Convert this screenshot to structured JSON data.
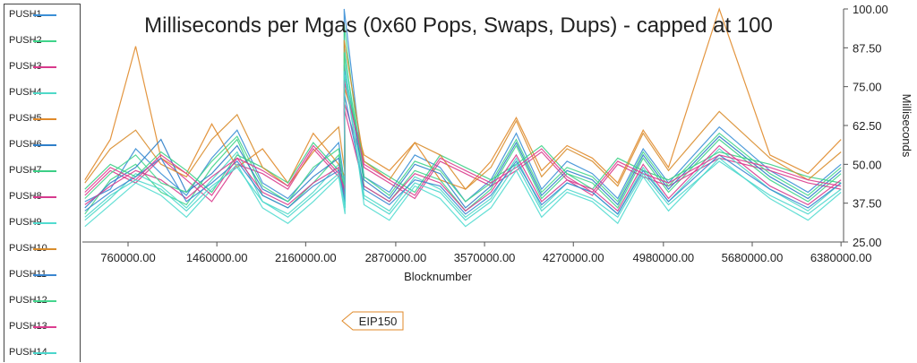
{
  "chart_data": {
    "type": "line",
    "title": "Milliseconds per Mgas (0x60 Pops, Swaps, Dups) - capped at 100",
    "xlabel": "Blocknumber",
    "ylabel": "Milliseconds",
    "xlim": [
      400000,
      6400000
    ],
    "ylim": [
      25,
      100
    ],
    "x_ticks": [
      "760000.00",
      "1460000.00",
      "2160000.00",
      "2870000.00",
      "3570000.00",
      "4270000.00",
      "4980000.00",
      "5680000.00",
      "6380000.00"
    ],
    "x_tick_values": [
      760000,
      1460000,
      2160000,
      2870000,
      3570000,
      4270000,
      4980000,
      5680000,
      6380000
    ],
    "y_ticks": [
      "100.00",
      "87.50",
      "75.00",
      "62.50",
      "50.00",
      "37.50",
      "25.00"
    ],
    "y_tick_values": [
      100,
      87.5,
      75,
      62.5,
      50,
      37.5,
      25
    ],
    "legend_position": "left",
    "grid": false,
    "annotation": {
      "label": "EIP150",
      "x": 2463000
    },
    "series": [
      {
        "name": "PUSH1",
        "color": "#3b8fd6",
        "values": [
          38,
          42,
          55,
          47,
          40,
          52,
          61,
          44,
          39,
          48,
          57,
          43,
          100,
          46,
          41,
          53,
          49,
          38,
          45,
          60,
          42,
          51,
          47,
          39,
          55,
          44,
          62,
          48,
          41,
          50
        ]
      },
      {
        "name": "PUSH2",
        "color": "#3fd48a",
        "values": [
          34,
          45,
          50,
          41,
          37,
          49,
          58,
          40,
          36,
          44,
          53,
          39,
          95,
          43,
          38,
          48,
          45,
          35,
          42,
          56,
          39,
          47,
          44,
          36,
          52,
          41,
          58,
          45,
          38,
          47
        ]
      },
      {
        "name": "PUSH3",
        "color": "#d93a8c",
        "values": [
          40,
          48,
          44,
          52,
          45,
          38,
          50,
          47,
          42,
          55,
          46,
          41,
          70,
          49,
          44,
          39,
          51,
          47,
          43,
          48,
          54,
          45,
          40,
          50,
          46,
          43,
          52,
          48,
          44,
          42
        ]
      },
      {
        "name": "PUSH4",
        "color": "#4fd9c8",
        "values": [
          32,
          39,
          47,
          43,
          36,
          45,
          54,
          38,
          34,
          41,
          50,
          37,
          88,
          40,
          35,
          46,
          42,
          33,
          39,
          52,
          36,
          44,
          41,
          34,
          49,
          38,
          55,
          42,
          35,
          44
        ]
      },
      {
        "name": "PUSH5",
        "color": "#e08a2a",
        "values": [
          45,
          58,
          88,
          52,
          47,
          63,
          49,
          55,
          44,
          60,
          50,
          46,
          75,
          53,
          48,
          57,
          45,
          42,
          51,
          65,
          48,
          56,
          52,
          44,
          61,
          49,
          100,
          53,
          47,
          58
        ]
      },
      {
        "name": "PUSH6",
        "color": "#2f7fc9",
        "values": [
          36,
          44,
          49,
          58,
          41,
          47,
          56,
          42,
          38,
          46,
          52,
          40,
          82,
          45,
          39,
          50,
          47,
          36,
          43,
          57,
          40,
          48,
          45,
          37,
          53,
          42,
          59,
          46,
          39,
          48
        ]
      },
      {
        "name": "PUSH7",
        "color": "#3ccf86",
        "values": [
          42,
          50,
          46,
          54,
          48,
          41,
          53,
          49,
          44,
          57,
          48,
          43,
          79,
          51,
          46,
          41,
          53,
          49,
          45,
          50,
          56,
          47,
          42,
          52,
          48,
          45,
          54,
          50,
          46,
          44
        ]
      },
      {
        "name": "PUSH8",
        "color": "#d63b8e",
        "values": [
          37,
          43,
          48,
          45,
          39,
          46,
          52,
          41,
          37,
          44,
          49,
          39,
          68,
          43,
          38,
          47,
          44,
          35,
          41,
          53,
          38,
          45,
          42,
          35,
          50,
          39,
          56,
          43,
          37,
          45
        ]
      },
      {
        "name": "PUSH9",
        "color": "#52dcd0",
        "values": [
          30,
          37,
          44,
          40,
          33,
          42,
          50,
          36,
          31,
          38,
          46,
          34,
          84,
          37,
          32,
          43,
          39,
          30,
          36,
          48,
          33,
          41,
          38,
          31,
          46,
          35,
          52,
          39,
          32,
          41
        ]
      },
      {
        "name": "PUSH10",
        "color": "#d98d2c",
        "values": [
          44,
          55,
          61,
          50,
          46,
          58,
          66,
          49,
          43,
          54,
          62,
          47,
          90,
          51,
          45,
          57,
          53,
          42,
          49,
          64,
          46,
          55,
          51,
          43,
          60,
          48,
          67,
          52,
          45,
          54
        ]
      },
      {
        "name": "PUSH11",
        "color": "#3a86d0",
        "values": [
          35,
          41,
          46,
          52,
          38,
          44,
          51,
          40,
          36,
          43,
          48,
          38,
          73,
          42,
          37,
          45,
          43,
          34,
          40,
          51,
          37,
          44,
          41,
          34,
          48,
          38,
          53,
          42,
          36,
          44
        ]
      },
      {
        "name": "PUSH12",
        "color": "#45d58e",
        "values": [
          39,
          47,
          53,
          44,
          41,
          51,
          59,
          43,
          38,
          49,
          55,
          42,
          86,
          46,
          40,
          51,
          48,
          38,
          44,
          58,
          41,
          49,
          46,
          38,
          54,
          43,
          60,
          47,
          40,
          49
        ]
      },
      {
        "name": "PUSH13",
        "color": "#dc3e90",
        "values": [
          41,
          49,
          45,
          53,
          47,
          40,
          52,
          48,
          43,
          56,
          47,
          42,
          77,
          50,
          45,
          40,
          52,
          48,
          44,
          49,
          55,
          46,
          41,
          51,
          47,
          44,
          53,
          49,
          45,
          43
        ]
      },
      {
        "name": "PUSH14",
        "color": "#4bd6cc",
        "values": [
          33,
          40,
          45,
          42,
          35,
          43,
          49,
          38,
          33,
          40,
          47,
          36,
          80,
          39,
          34,
          44,
          41,
          32,
          38,
          50,
          35,
          42,
          39,
          33,
          47,
          37,
          51,
          40,
          34,
          42
        ]
      }
    ],
    "x": [
      420000,
      620000,
      820000,
      1020000,
      1220000,
      1420000,
      1620000,
      1820000,
      2020000,
      2220000,
      2420000,
      2470000,
      2463000,
      2620000,
      2820000,
      3020000,
      3220000,
      3420000,
      3620000,
      3820000,
      4020000,
      4220000,
      4420000,
      4620000,
      4820000,
      5020000,
      5420000,
      5820000,
      6120000,
      6380000
    ]
  }
}
